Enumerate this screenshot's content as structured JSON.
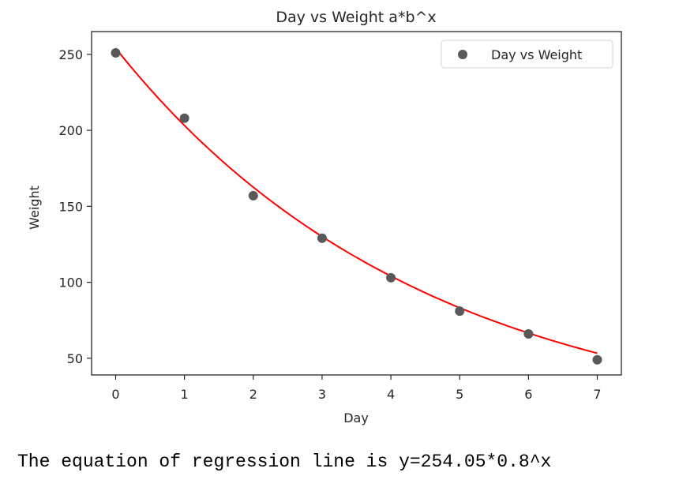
{
  "chart_data": {
    "type": "scatter",
    "title": "Day vs Weight a*b^x",
    "xlabel": "Day",
    "ylabel": "Weight",
    "xlim": [
      -0.35,
      7.35
    ],
    "ylim": [
      39,
      265
    ],
    "xticks": [
      0,
      1,
      2,
      3,
      4,
      5,
      6,
      7
    ],
    "xtick_labels": [
      "0",
      "1",
      "2",
      "3",
      "4",
      "5",
      "6",
      "7"
    ],
    "yticks": [
      50,
      100,
      150,
      200,
      250
    ],
    "ytick_labels": [
      "50",
      "100",
      "150",
      "200",
      "250"
    ],
    "grid": false,
    "legend_position": "top-right",
    "series": [
      {
        "name": "Day vs Weight",
        "kind": "scatter",
        "color": "#595959",
        "x": [
          0,
          1,
          2,
          3,
          4,
          5,
          6,
          7
        ],
        "y": [
          251,
          208,
          157,
          129,
          103,
          81,
          66,
          49
        ]
      },
      {
        "kind": "line",
        "color": "#ff0000",
        "x": [
          0,
          1,
          2,
          3,
          4,
          5,
          6,
          7
        ],
        "y": [
          254.05,
          203.2,
          162.6,
          130.1,
          104.1,
          83.2,
          66.6,
          53.3
        ]
      }
    ]
  },
  "equation_text": "The equation of regression line is y=254.05*0.8^x"
}
